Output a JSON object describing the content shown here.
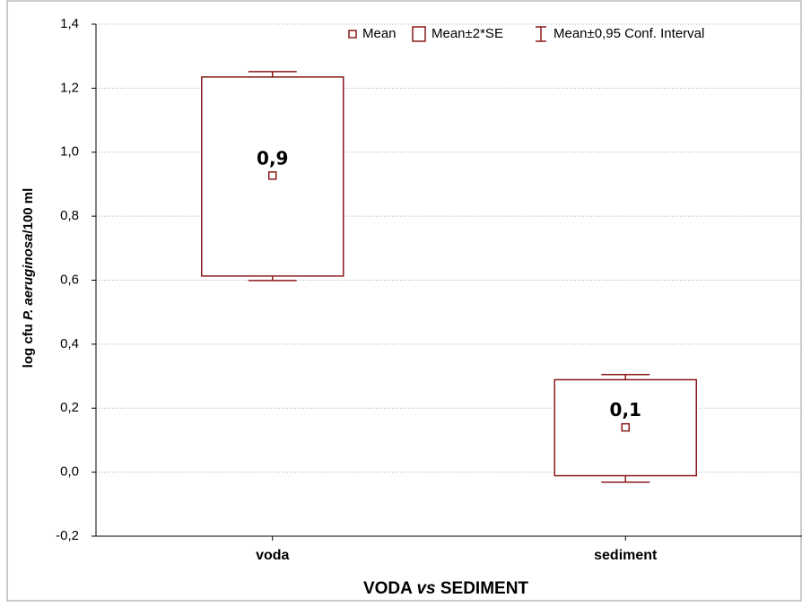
{
  "chart_data": {
    "type": "box",
    "ylabel": [
      "log cfu ",
      "P. aeruginosa",
      "/100 ml"
    ],
    "xlabel": [
      "VODA ",
      "vs",
      " SEDIMENT"
    ],
    "legend": [
      "Mean",
      "Mean±2*SE",
      "Mean±0,95 Conf. Interval"
    ],
    "color": "#8b1a1a",
    "categories": [
      "voda",
      "sediment"
    ],
    "mean": [
      0.927,
      0.14
    ],
    "value_labels": [
      "0,9",
      "0,1"
    ],
    "box_low": [
      0.613,
      -0.011
    ],
    "box_high": [
      1.235,
      0.289
    ],
    "ci_low": [
      0.599,
      -0.031
    ],
    "ci_high": [
      1.252,
      0.305
    ],
    "ylim": [
      -0.2,
      1.4
    ],
    "yticks": [
      {
        "value": -0.2,
        "label": "-0,2"
      },
      {
        "value": 0,
        "label": "0,0"
      },
      {
        "value": 0.2,
        "label": "0,2"
      },
      {
        "value": 0.4,
        "label": "0,4"
      },
      {
        "value": 0.6,
        "label": "0,6"
      },
      {
        "value": 0.8,
        "label": "0,8"
      },
      {
        "value": 1.0,
        "label": "1,0"
      },
      {
        "value": 1.2,
        "label": "1,2"
      },
      {
        "value": 1.4,
        "label": "1,4"
      }
    ],
    "grid": true
  }
}
